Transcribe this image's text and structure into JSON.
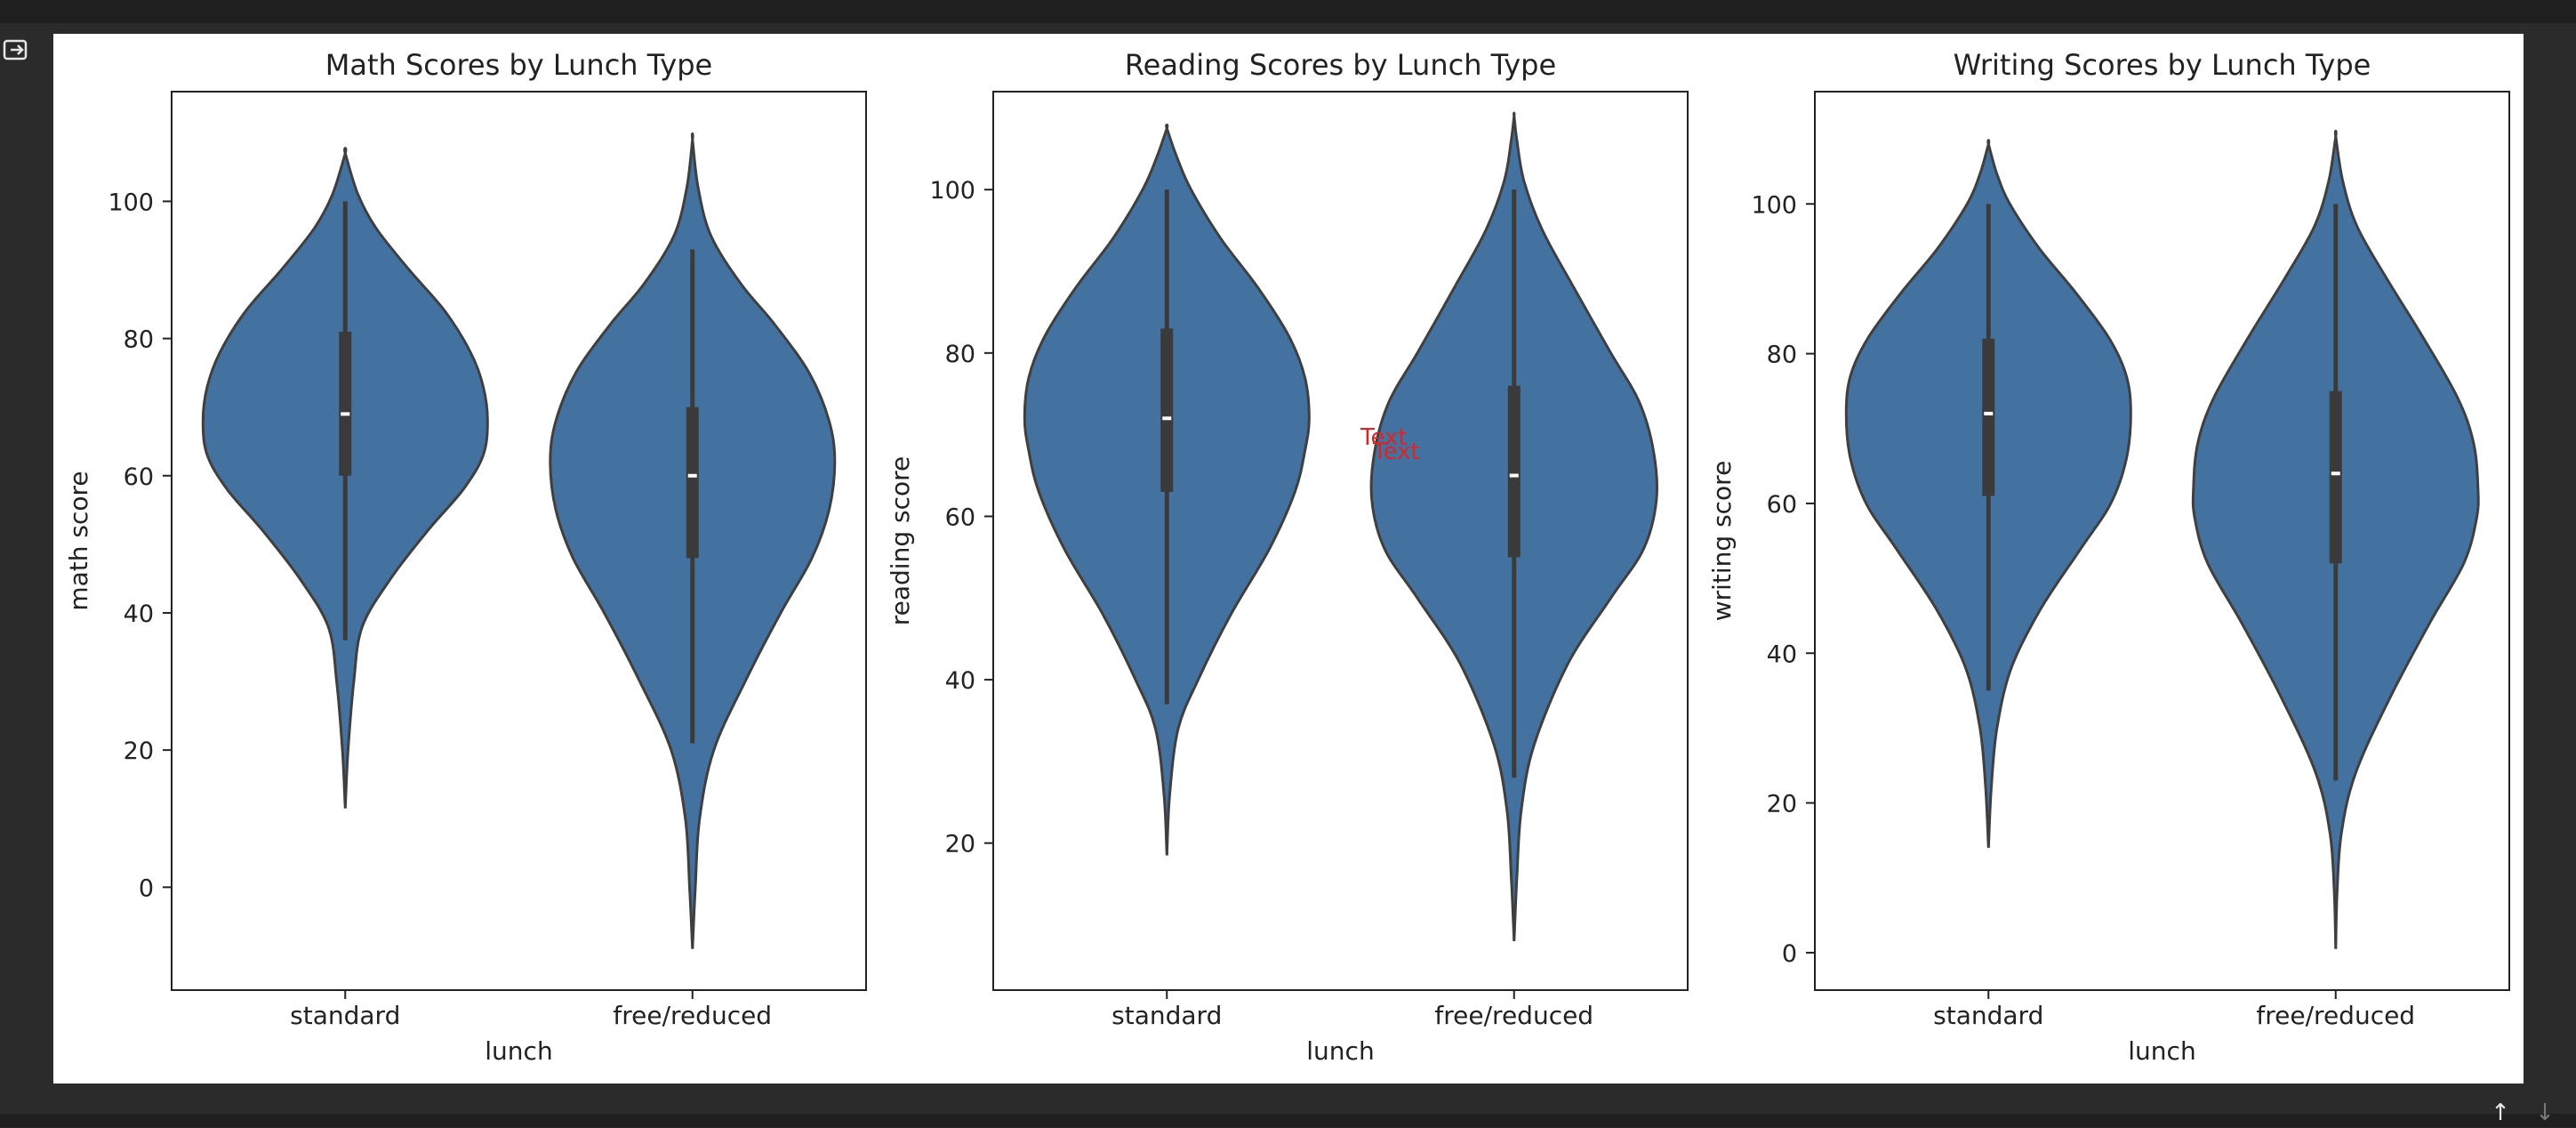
{
  "chart_data": [
    {
      "type": "violin",
      "title": "Math Scores by Lunch Type",
      "xlabel": "lunch",
      "ylabel": "math score",
      "ylim": [
        -15,
        116
      ],
      "yticks": [
        0,
        20,
        40,
        60,
        80,
        100
      ],
      "categories": [
        "standard",
        "free/reduced"
      ],
      "color": "#4472a0",
      "violins": [
        {
          "category": "standard",
          "min": 11,
          "q1": 60,
          "median": 69,
          "q3": 81,
          "max": 100,
          "whisker_low": 36,
          "whisker_high": 100,
          "profile": [
            [
              11.5,
              0
            ],
            [
              20,
              0.02
            ],
            [
              30,
              0.06
            ],
            [
              38,
              0.12
            ],
            [
              45,
              0.32
            ],
            [
              52,
              0.58
            ],
            [
              58,
              0.83
            ],
            [
              63,
              0.97
            ],
            [
              68,
              1.0
            ],
            [
              73,
              0.97
            ],
            [
              78,
              0.88
            ],
            [
              84,
              0.7
            ],
            [
              90,
              0.45
            ],
            [
              96,
              0.22
            ],
            [
              101,
              0.09
            ],
            [
              107,
              0
            ]
          ]
        },
        {
          "category": "free/reduced",
          "min": -9,
          "q1": 48,
          "median": 60,
          "q3": 70,
          "max": 100,
          "whisker_low": 21,
          "whisker_high": 93,
          "profile": [
            [
              -9,
              0
            ],
            [
              0,
              0.02
            ],
            [
              10,
              0.05
            ],
            [
              20,
              0.15
            ],
            [
              30,
              0.37
            ],
            [
              40,
              0.62
            ],
            [
              48,
              0.84
            ],
            [
              55,
              0.96
            ],
            [
              62,
              1.0
            ],
            [
              68,
              0.96
            ],
            [
              75,
              0.82
            ],
            [
              82,
              0.58
            ],
            [
              88,
              0.34
            ],
            [
              95,
              0.13
            ],
            [
              102,
              0.04
            ],
            [
              109,
              0
            ]
          ]
        }
      ]
    },
    {
      "type": "violin",
      "title": "Reading Scores by Lunch Type",
      "xlabel": "lunch",
      "ylabel": "reading score",
      "ylim": [
        2,
        112
      ],
      "yticks": [
        20,
        40,
        60,
        80,
        100
      ],
      "categories": [
        "standard",
        "free/reduced"
      ],
      "color": "#4472a0",
      "violins": [
        {
          "category": "standard",
          "min": 18,
          "q1": 63,
          "median": 72,
          "q3": 83,
          "max": 100,
          "whisker_low": 37,
          "whisker_high": 100,
          "profile": [
            [
              18.5,
              0
            ],
            [
              26,
              0.02
            ],
            [
              34,
              0.08
            ],
            [
              40,
              0.22
            ],
            [
              48,
              0.45
            ],
            [
              56,
              0.72
            ],
            [
              63,
              0.9
            ],
            [
              68,
              0.97
            ],
            [
              72,
              1.0
            ],
            [
              77,
              0.97
            ],
            [
              82,
              0.86
            ],
            [
              88,
              0.64
            ],
            [
              94,
              0.38
            ],
            [
              100,
              0.17
            ],
            [
              104,
              0.07
            ],
            [
              107.5,
              0
            ]
          ]
        },
        {
          "category": "free/reduced",
          "min": 8,
          "q1": 55,
          "median": 65,
          "q3": 76,
          "max": 100,
          "whisker_low": 28,
          "whisker_high": 100,
          "profile": [
            [
              8,
              0
            ],
            [
              16,
              0.02
            ],
            [
              24,
              0.05
            ],
            [
              32,
              0.14
            ],
            [
              42,
              0.38
            ],
            [
              50,
              0.68
            ],
            [
              56,
              0.91
            ],
            [
              62,
              1.0
            ],
            [
              68,
              0.98
            ],
            [
              74,
              0.88
            ],
            [
              80,
              0.68
            ],
            [
              88,
              0.42
            ],
            [
              95,
              0.2
            ],
            [
              101,
              0.07
            ],
            [
              106,
              0.02
            ],
            [
              109,
              0
            ]
          ]
        }
      ]
    },
    {
      "type": "violin",
      "title": "Writing Scores by Lunch Type",
      "xlabel": "lunch",
      "ylabel": "writing score",
      "ylim": [
        -5,
        115
      ],
      "yticks": [
        0,
        20,
        40,
        60,
        80,
        100
      ],
      "categories": [
        "standard",
        "free/reduced"
      ],
      "color": "#4472a0",
      "violins": [
        {
          "category": "standard",
          "min": 14,
          "q1": 61,
          "median": 72,
          "q3": 82,
          "max": 100,
          "whisker_low": 35,
          "whisker_high": 100,
          "profile": [
            [
              14,
              0
            ],
            [
              22,
              0.02
            ],
            [
              30,
              0.06
            ],
            [
              38,
              0.16
            ],
            [
              46,
              0.37
            ],
            [
              54,
              0.65
            ],
            [
              60,
              0.86
            ],
            [
              66,
              0.97
            ],
            [
              72,
              1.0
            ],
            [
              77,
              0.97
            ],
            [
              82,
              0.85
            ],
            [
              88,
              0.62
            ],
            [
              94,
              0.36
            ],
            [
              100,
              0.15
            ],
            [
              104,
              0.06
            ],
            [
              108,
              0
            ]
          ]
        },
        {
          "category": "free/reduced",
          "min": 0,
          "q1": 52,
          "median": 64,
          "q3": 75,
          "max": 100,
          "whisker_low": 23,
          "whisker_high": 100,
          "profile": [
            [
              0.5,
              0
            ],
            [
              8,
              0.01
            ],
            [
              16,
              0.04
            ],
            [
              24,
              0.14
            ],
            [
              34,
              0.38
            ],
            [
              44,
              0.66
            ],
            [
              52,
              0.9
            ],
            [
              58,
              0.99
            ],
            [
              62,
              1.0
            ],
            [
              68,
              0.97
            ],
            [
              74,
              0.86
            ],
            [
              82,
              0.62
            ],
            [
              90,
              0.36
            ],
            [
              97,
              0.15
            ],
            [
              103,
              0.05
            ],
            [
              109,
              0
            ]
          ]
        }
      ]
    }
  ],
  "annotation": {
    "text": "Text",
    "color": "#d62728"
  },
  "ui": {
    "left_icon": "exit-to-right-icon",
    "scroll_up_icon": "arrow-up-icon",
    "scroll_down_icon": "arrow-down-icon"
  }
}
